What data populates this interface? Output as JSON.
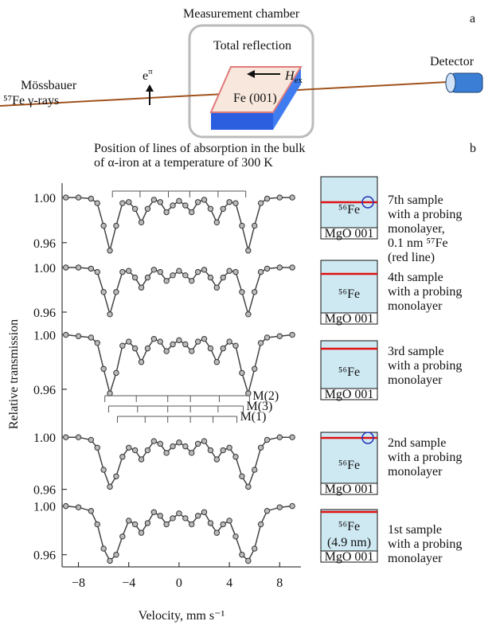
{
  "figure_a": {
    "label": "a",
    "chamber_title": "Measurement chamber",
    "chamber_label": "Total reflection",
    "source_line1": "Mössbauer",
    "source_line2": "⁵⁷Fe γ-rays",
    "polarization": "e",
    "polarization_sup": "π",
    "field": "H",
    "field_sub": "ex",
    "crystal": "Fe (001)",
    "detector": "Detector"
  },
  "figure_b": {
    "label": "b",
    "caption": [
      "Position of lines of absorption in the bulk",
      "of α-iron at a temperature of 300 K"
    ]
  },
  "chart_data": {
    "type": "line",
    "x_label": "Velocity, mm s⁻¹",
    "y_label": "Relative transmission",
    "xlim": [
      -9.3,
      9.5
    ],
    "xticks": [
      {
        "value": -8,
        "label": "−8"
      },
      {
        "value": -4,
        "label": "−4"
      },
      0,
      4,
      8
    ],
    "x": [
      -9,
      -8,
      -7,
      -6.5,
      -6,
      -5.5,
      -5,
      -4.5,
      -4,
      -3.5,
      -3,
      -2.5,
      -2,
      -1.5,
      -1,
      -0.5,
      0,
      0.5,
      1,
      1.5,
      2,
      2.5,
      3,
      3.5,
      4,
      4.5,
      5,
      5.5,
      6,
      6.5,
      7,
      8,
      9
    ],
    "line_color": "#444444",
    "panels": [
      {
        "ylim": [
          0.95,
          1.005
        ],
        "yticks": [
          {
            "value": 1,
            "label": "1.00"
          },
          {
            "value": 0.96,
            "label": "0.96"
          }
        ],
        "values": [
          1.0,
          1.0,
          0.999,
          0.995,
          0.975,
          0.953,
          0.975,
          0.995,
          0.996,
          0.99,
          0.978,
          0.99,
          0.998,
          0.996,
          0.987,
          0.993,
          0.997,
          0.993,
          0.987,
          0.996,
          0.998,
          0.99,
          0.978,
          0.99,
          0.996,
          0.995,
          0.975,
          0.953,
          0.975,
          0.995,
          0.999,
          1.0,
          1.0
        ]
      },
      {
        "ylim": [
          0.95,
          1.005
        ],
        "yticks": [
          {
            "value": 1,
            "label": "1.00"
          },
          {
            "value": 0.96,
            "label": "0.96"
          }
        ],
        "values": [
          1.0,
          1.0,
          0.999,
          0.996,
          0.978,
          0.958,
          0.978,
          0.996,
          0.997,
          0.991,
          0.982,
          0.991,
          0.998,
          0.996,
          0.988,
          0.993,
          0.997,
          0.993,
          0.988,
          0.996,
          0.998,
          0.991,
          0.982,
          0.991,
          0.997,
          0.996,
          0.978,
          0.958,
          0.978,
          0.996,
          0.999,
          1.0,
          1.0
        ]
      },
      {
        "ylim": [
          0.95,
          1.005
        ],
        "yticks": [
          {
            "value": 1,
            "label": "1.00"
          },
          {
            "value": 0.96,
            "label": "0.96"
          }
        ],
        "values": [
          1.0,
          0.999,
          0.998,
          0.994,
          0.975,
          0.957,
          0.972,
          0.992,
          0.995,
          0.99,
          0.98,
          0.99,
          0.997,
          0.995,
          0.988,
          0.993,
          0.996,
          0.993,
          0.988,
          0.995,
          0.997,
          0.99,
          0.98,
          0.99,
          0.995,
          0.992,
          0.972,
          0.957,
          0.975,
          0.994,
          0.998,
          0.999,
          1.0
        ]
      },
      {
        "ylim": [
          0.95,
          1.005
        ],
        "yticks": [
          {
            "value": 1,
            "label": "1.00"
          },
          {
            "value": 0.96,
            "label": "0.96"
          }
        ],
        "values": [
          1.0,
          1.0,
          0.998,
          0.992,
          0.975,
          0.962,
          0.97,
          0.985,
          0.992,
          0.99,
          0.983,
          0.99,
          0.997,
          0.995,
          0.988,
          0.993,
          0.996,
          0.993,
          0.988,
          0.995,
          0.997,
          0.99,
          0.983,
          0.99,
          0.992,
          0.985,
          0.97,
          0.962,
          0.975,
          0.992,
          0.998,
          1.0,
          1.0
        ]
      },
      {
        "ylim": [
          0.95,
          1.005
        ],
        "yticks": [
          {
            "value": 1,
            "label": "1.00"
          },
          {
            "value": 0.96,
            "label": "0.96"
          }
        ],
        "values": [
          1.0,
          0.999,
          0.996,
          0.985,
          0.965,
          0.955,
          0.96,
          0.975,
          0.988,
          0.985,
          0.978,
          0.986,
          0.995,
          0.992,
          0.985,
          0.99,
          0.994,
          0.99,
          0.985,
          0.992,
          0.995,
          0.986,
          0.978,
          0.985,
          0.988,
          0.975,
          0.96,
          0.955,
          0.965,
          0.985,
          0.996,
          0.999,
          1.0
        ]
      }
    ],
    "markers": [
      {
        "positions": [
          -5.3,
          -3.1,
          -0.85,
          0.85,
          3.1,
          5.3
        ]
      },
      {
        "label": "M(2)",
        "positions": [
          -5.9,
          -3.4,
          -0.9,
          0.9,
          3.2,
          5.6
        ]
      },
      {
        "label": "M(3)",
        "positions": [
          -5.6,
          -3.3,
          -0.9,
          0.9,
          3.1,
          5.1
        ]
      },
      {
        "label": "M(1)",
        "positions": [
          -4.9,
          -2.7,
          -0.9,
          0.9,
          2.7,
          4.6
        ]
      }
    ]
  },
  "samples": [
    {
      "layer": "⁵⁶Fe",
      "substrate": "MgO 001",
      "description": [
        "7th sample",
        "with a probing",
        "monolayer,",
        "0.1 nm ⁵⁷Fe",
        "(red line)"
      ]
    },
    {
      "layer": "⁵⁶Fe",
      "substrate": "MgO 001",
      "description": [
        "4th sample",
        "with a probing",
        "monolayer"
      ]
    },
    {
      "layer": "⁵⁶Fe",
      "substrate": "MgO 001",
      "description": [
        "3rd sample",
        "with a probing",
        "monolayer"
      ]
    },
    {
      "layer": "⁵⁶Fe",
      "substrate": "MgO 001",
      "description": [
        "2nd sample",
        "with a probing",
        "monolayer"
      ]
    },
    {
      "layer": "⁵⁶Fe",
      "layer_note": "(4.9 nm)",
      "substrate": "MgO 001",
      "description": [
        "1st sample",
        "with a probing",
        "monolayer"
      ]
    }
  ]
}
